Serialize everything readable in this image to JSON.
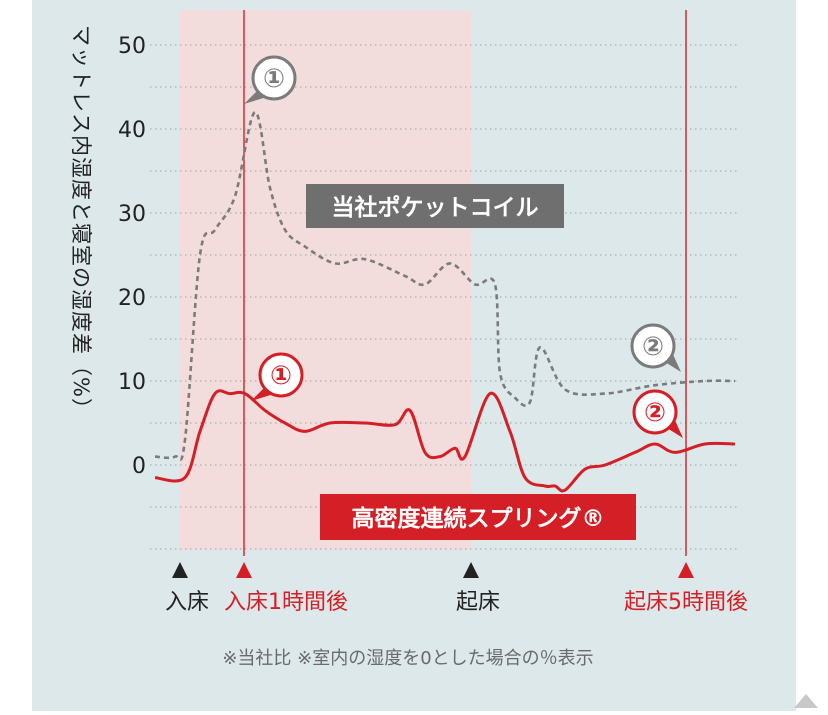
{
  "chart_data": {
    "type": "line",
    "ylabel": "マットレス内湿度と寝室の湿度差（%）",
    "ylim": [
      -10,
      50
    ],
    "yticks": [
      0,
      10,
      20,
      30,
      40,
      50
    ],
    "grid": true,
    "shaded_period_label": [
      "入床",
      "起床"
    ],
    "markers": [
      {
        "label": "入床",
        "color": "#222222"
      },
      {
        "label": "入床1時間後",
        "color": "#d41f26"
      },
      {
        "label": "起床",
        "color": "#222222"
      },
      {
        "label": "起床5時間後",
        "color": "#d41f26"
      }
    ],
    "series": [
      {
        "name": "当社ポケットコイル",
        "color": "#7b7b7b",
        "style": "dashed",
        "points": [
          [
            0,
            1
          ],
          [
            0.2,
            1
          ],
          [
            0.3,
            3
          ],
          [
            0.45,
            25
          ],
          [
            0.6,
            28
          ],
          [
            0.8,
            32
          ],
          [
            1.0,
            42
          ],
          [
            1.15,
            33
          ],
          [
            1.3,
            28
          ],
          [
            1.5,
            26
          ],
          [
            1.8,
            24
          ],
          [
            2.1,
            24.5
          ],
          [
            2.5,
            22.5
          ],
          [
            2.7,
            21.5
          ],
          [
            2.95,
            24
          ],
          [
            3.2,
            21.5
          ],
          [
            3.4,
            21.5
          ],
          [
            3.45,
            11
          ],
          [
            3.6,
            8
          ],
          [
            3.75,
            7.5
          ],
          [
            3.85,
            14
          ],
          [
            4.1,
            9
          ],
          [
            4.5,
            8.5
          ],
          [
            5.0,
            9.5
          ],
          [
            5.5,
            10
          ],
          [
            5.8,
            10
          ]
        ]
      },
      {
        "name": "高密度連続スプリング®",
        "color": "#d41f26",
        "style": "solid",
        "points": [
          [
            0,
            -1.5
          ],
          [
            0.3,
            -1.5
          ],
          [
            0.45,
            4
          ],
          [
            0.6,
            8.5
          ],
          [
            0.75,
            8.5
          ],
          [
            0.9,
            8.5
          ],
          [
            1.1,
            6.5
          ],
          [
            1.3,
            5
          ],
          [
            1.5,
            4
          ],
          [
            1.75,
            5
          ],
          [
            2.1,
            5
          ],
          [
            2.4,
            4.8
          ],
          [
            2.55,
            6.5
          ],
          [
            2.7,
            1.5
          ],
          [
            2.85,
            1
          ],
          [
            3.0,
            2
          ],
          [
            3.1,
            1
          ],
          [
            3.35,
            8.5
          ],
          [
            3.55,
            4
          ],
          [
            3.7,
            -1.5
          ],
          [
            3.9,
            -2.5
          ],
          [
            4.0,
            -2.5
          ],
          [
            4.1,
            -3
          ],
          [
            4.3,
            -0.5
          ],
          [
            4.5,
            0
          ],
          [
            4.8,
            1.5
          ],
          [
            5.0,
            2.5
          ],
          [
            5.2,
            1.5
          ],
          [
            5.5,
            2.5
          ],
          [
            5.8,
            2.5
          ]
        ]
      }
    ],
    "callouts": [
      {
        "number": "①",
        "series": "当社ポケットコイル",
        "color": "#7b7b7b"
      },
      {
        "number": "①",
        "series": "高密度連続スプリング®",
        "color": "#d41f26"
      },
      {
        "number": "②",
        "series": "当社ポケットコイル",
        "color": "#7b7b7b"
      },
      {
        "number": "②",
        "series": "高密度連続スプリング®",
        "color": "#d41f26"
      }
    ],
    "annotation": "※当社比 ※室内の湿度を0とした場合の％表示"
  },
  "colors": {
    "background": "#dde8ea",
    "shade": "#f2dcdc",
    "red": "#d41f26",
    "gray": "#7b7b7b",
    "grid": "#9aa3a6"
  }
}
